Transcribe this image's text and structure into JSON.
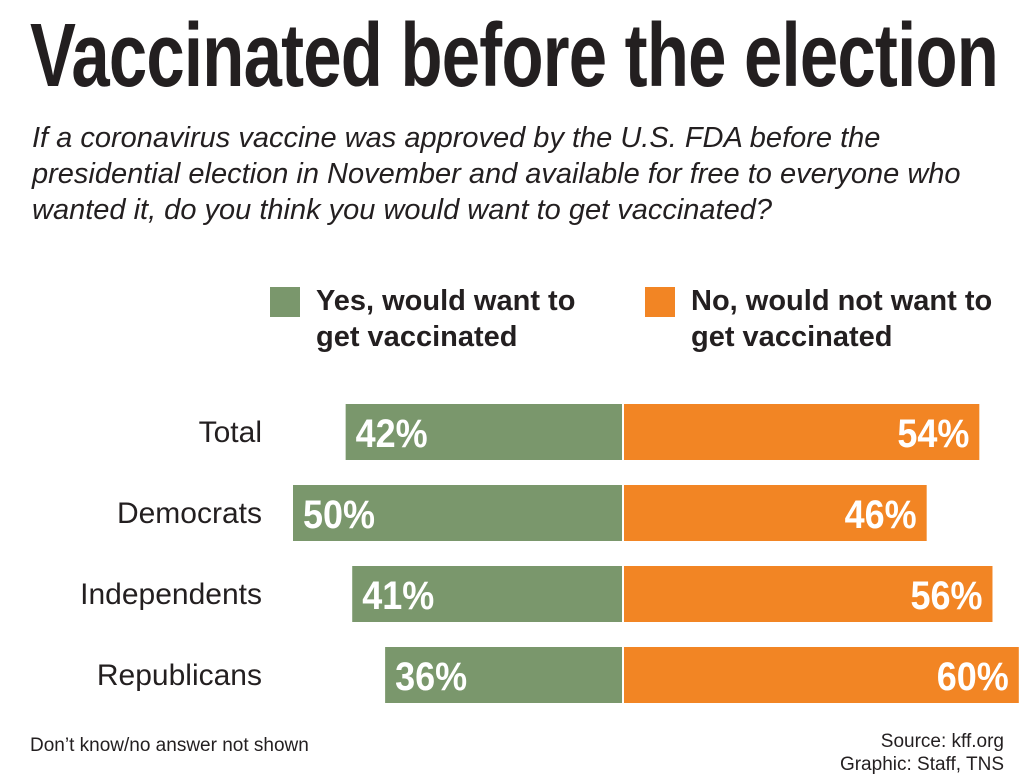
{
  "title": "Vaccinated before the election",
  "subtitle": "If a coronavirus vaccine was approved by the U.S. FDA before the presidential election in November and available for free to everyone who wanted it, do you think you would want to get vaccinated?",
  "legend": [
    {
      "label": "Yes, would want to get vaccinated",
      "color": "#7a976c"
    },
    {
      "label": "No, would not want to get vaccinated",
      "color": "#f28524"
    }
  ],
  "chart_data": {
    "type": "bar",
    "orientation": "diverging-horizontal",
    "categories": [
      "Total",
      "Democrats",
      "Independents",
      "Republicans"
    ],
    "series": [
      {
        "name": "Yes, would want to get vaccinated",
        "values": [
          42,
          50,
          41,
          36
        ],
        "labels": [
          "42%",
          "50%",
          "41%",
          "36%"
        ],
        "color": "#7a976c"
      },
      {
        "name": "No, would not want to get vaccinated",
        "values": [
          54,
          46,
          56,
          60
        ],
        "labels": [
          "54%",
          "46%",
          "56%",
          "60%"
        ],
        "color": "#f28524"
      }
    ],
    "unit": "%"
  },
  "footer": {
    "note": "Don’t know/no answer not shown",
    "source": "Source: kff.org",
    "credit": "Graphic: Staff, TNS"
  }
}
